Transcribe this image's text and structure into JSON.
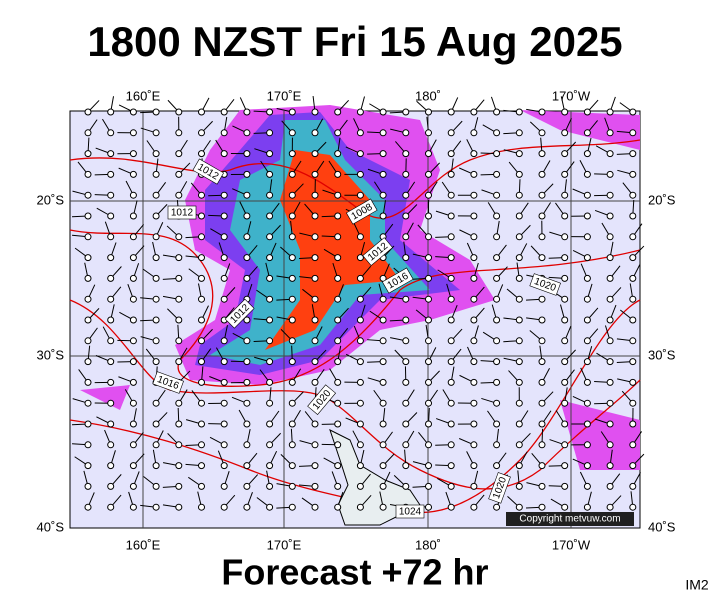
{
  "header": {
    "title": "1800 NZST Fri 15 Aug 2025"
  },
  "map": {
    "lon_labels": [
      "160˚E",
      "170˚E",
      "180˚",
      "170˚W"
    ],
    "lat_labels": [
      "20˚S",
      "30˚S",
      "40˚S"
    ],
    "isobar_labels": [
      "1012",
      "1012",
      "1008",
      "1012",
      "1016",
      "1020",
      "1012",
      "1016",
      "1020",
      "1020",
      "1024"
    ],
    "copyright": "Copyright metvuw.com"
  },
  "footer": {
    "forecast": "Forecast +72 hr",
    "image_id": "IM2"
  }
}
